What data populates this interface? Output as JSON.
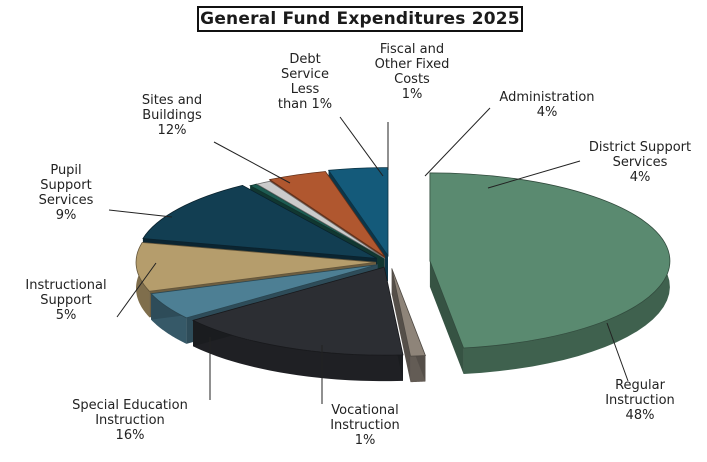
{
  "chart_data": {
    "type": "pie",
    "title": "General Fund Expenditures 2025",
    "slices": [
      {
        "label": "Regular Instruction",
        "label_lines": [
          "Regular",
          "Instruction",
          "48%"
        ],
        "value": 48,
        "display": "48%",
        "color": "#5a8a70"
      },
      {
        "label": "Vocational Instruction",
        "label_lines": [
          "Vocational",
          "Instruction",
          "1%"
        ],
        "value": 1,
        "display": "1%",
        "color": "#8e8479"
      },
      {
        "label": "Special Education Instruction",
        "label_lines": [
          "Special Education",
          "Instruction",
          "16%"
        ],
        "value": 16,
        "display": "16%",
        "color": "#2c2e33"
      },
      {
        "label": "Instructional Support",
        "label_lines": [
          "Instructional",
          "Support",
          "5%"
        ],
        "value": 5,
        "display": "5%",
        "color": "#4d7f94"
      },
      {
        "label": "Pupil Support Services",
        "label_lines": [
          "Pupil",
          "Support",
          "Services",
          "9%"
        ],
        "value": 9,
        "display": "9%",
        "color": "#b59d6c"
      },
      {
        "label": "Sites and Buildings",
        "label_lines": [
          "Sites and",
          "Buildings",
          "12%"
        ],
        "value": 12,
        "display": "12%",
        "color": "#123e52"
      },
      {
        "label": "Debt Service Less than 1%",
        "label_lines": [
          "Debt",
          "Service",
          "Less",
          "than 1%"
        ],
        "value": 0.5,
        "display": "Less than 1%",
        "color": "#1d5c52"
      },
      {
        "label": "Fiscal and Other Fixed Costs",
        "label_lines": [
          "Fiscal and",
          "Other Fixed",
          "Costs",
          "1%"
        ],
        "value": 1,
        "display": "1%",
        "color": "#cbcbcb"
      },
      {
        "label": "Administration",
        "label_lines": [
          "Administration",
          "4%"
        ],
        "value": 4,
        "display": "4%",
        "color": "#b0572f"
      },
      {
        "label": "District Support Services",
        "label_lines": [
          "District Support",
          "Services",
          "4%"
        ],
        "value": 4,
        "display": "4%",
        "color": "#145a7a"
      }
    ]
  }
}
